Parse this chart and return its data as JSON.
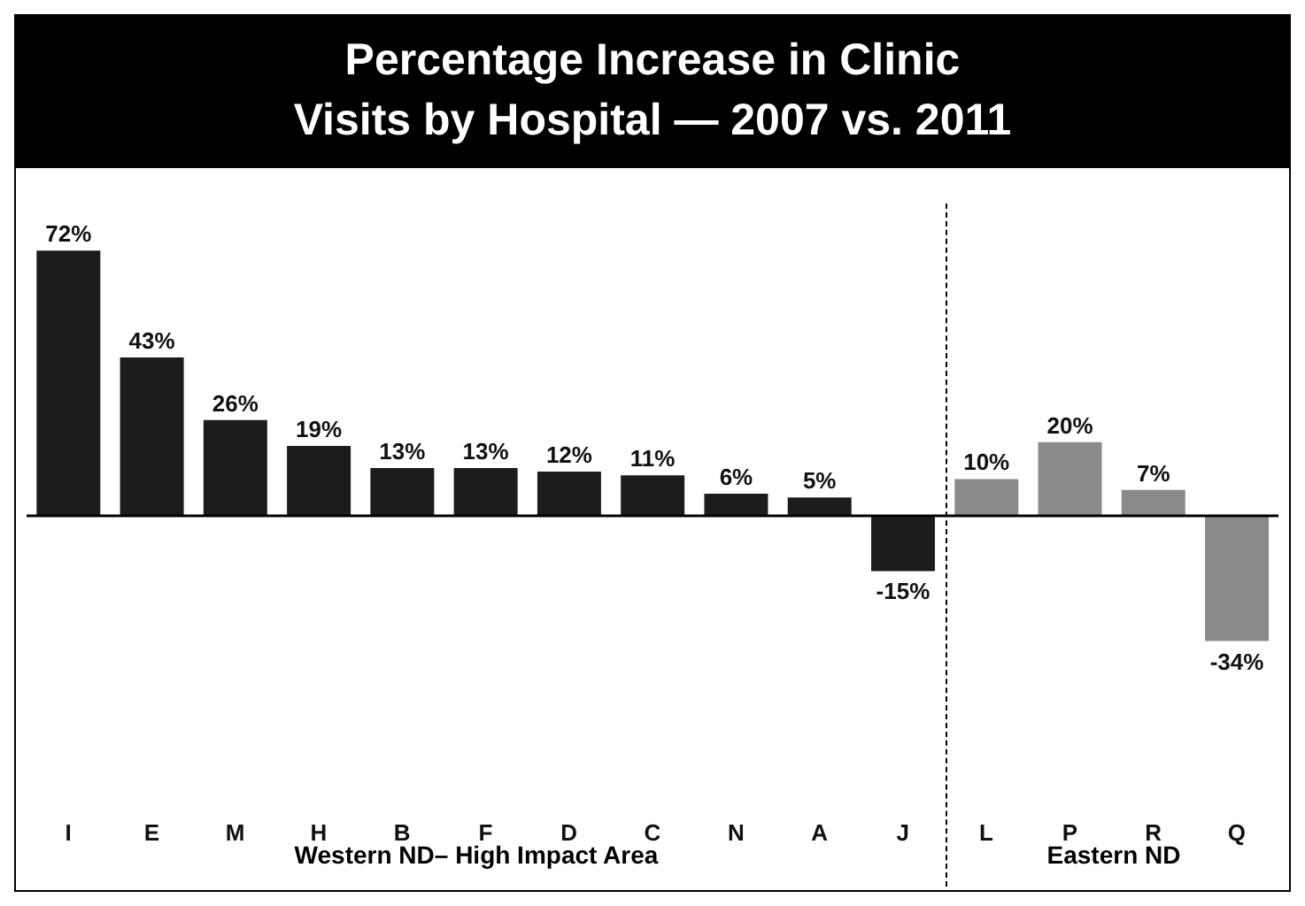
{
  "chart_data": {
    "type": "bar",
    "title": "Percentage Increase in Clinic Visits by Hospital — 2007 vs. 2011",
    "categories": [
      "I",
      "E",
      "M",
      "H",
      "B",
      "F",
      "D",
      "C",
      "N",
      "A",
      "J",
      "L",
      "P",
      "R",
      "Q"
    ],
    "values": [
      72,
      43,
      26,
      19,
      13,
      13,
      12,
      11,
      6,
      5,
      -15,
      10,
      20,
      7,
      -34
    ],
    "colors": [
      "#1c1c1c",
      "#1c1c1c",
      "#1c1c1c",
      "#1c1c1c",
      "#1c1c1c",
      "#1c1c1c",
      "#1c1c1c",
      "#1c1c1c",
      "#1c1c1c",
      "#1c1c1c",
      "#1c1c1c",
      "#8a8a8a",
      "#8a8a8a",
      "#8a8a8a",
      "#8a8a8a"
    ],
    "value_labels": [
      "72%",
      "43%",
      "26%",
      "19%",
      "13%",
      "13%",
      "12%",
      "11%",
      "6%",
      "5%",
      "-15%",
      "10%",
      "20%",
      "7%",
      "-34%"
    ],
    "annotations": [
      "Western ND– High Impact Area",
      "Eastern ND"
    ],
    "grid": false,
    "legend": false
  }
}
